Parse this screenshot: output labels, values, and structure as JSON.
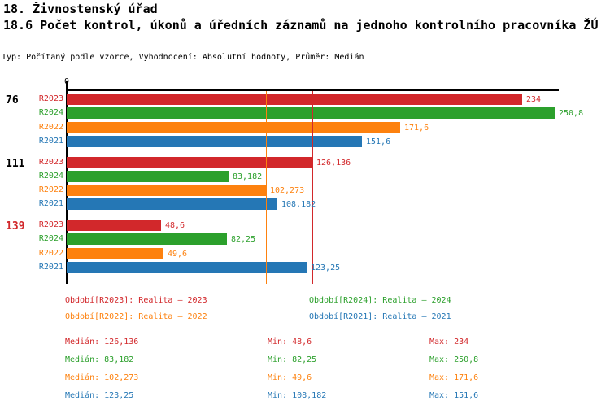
{
  "page": {
    "title": "18. Živnostenský úřad",
    "subtitle": "18.6 Počet kontrol, úkonů a úředních záznamů na jednoho kontrolního pracovníka ŽÚ",
    "meta": "Typ: Počítaný podle vzorce, Vyhodnocení: Absolutní hodnoty, Průměr: Medián"
  },
  "colors": {
    "R2023": "#d2282b",
    "R2024": "#2ca02c",
    "R2022": "#fd810e",
    "R2021": "#2577b5",
    "text": "#000000"
  },
  "chart_data": {
    "type": "bar",
    "orientation": "horizontal",
    "value_axis": {
      "min": 0,
      "tick_label": "0",
      "position": "top"
    },
    "row_order": [
      "R2023",
      "R2024",
      "R2022",
      "R2021"
    ],
    "series": [
      {
        "id": "R2023",
        "name": "Realita – 2023",
        "color": "#d2282b",
        "median": 126.136,
        "min": 48.6,
        "max": 234
      },
      {
        "id": "R2024",
        "name": "Realita – 2024",
        "color": "#2ca02c",
        "median": 83.182,
        "min": 82.25,
        "max": 250.8
      },
      {
        "id": "R2022",
        "name": "Realita – 2022",
        "color": "#fd810e",
        "median": 102.273,
        "min": 49.6,
        "max": 171.6
      },
      {
        "id": "R2021",
        "name": "Realita – 2021",
        "color": "#2577b5",
        "median": 123.25,
        "min": 108.182,
        "max": 151.6
      }
    ],
    "groups": [
      {
        "label": "76",
        "label_color": "#000000",
        "values": {
          "R2023": 234,
          "R2024": 250.8,
          "R2022": 171.6,
          "R2021": 151.6
        },
        "display": {
          "R2023": "234",
          "R2024": "250,8",
          "R2022": "171,6",
          "R2021": "151,6"
        }
      },
      {
        "label": "111",
        "label_color": "#000000",
        "values": {
          "R2023": 126.136,
          "R2024": 83.182,
          "R2022": 102.273,
          "R2021": 108.182
        },
        "display": {
          "R2023": "126,136",
          "R2024": "83,182",
          "R2022": "102,273",
          "R2021": "108,182"
        }
      },
      {
        "label": "139",
        "label_color": "#d2282b",
        "values": {
          "R2023": 48.6,
          "R2024": 82.25,
          "R2022": 49.6,
          "R2021": 123.25
        },
        "display": {
          "R2023": "48,6",
          "R2024": "82,25",
          "R2022": "49,6",
          "R2021": "123,25"
        }
      }
    ],
    "median_lines": {
      "R2023": 126.136,
      "R2024": 83.182,
      "R2022": 102.273,
      "R2021": 123.25
    }
  },
  "legend": {
    "items": [
      {
        "series": "R2023",
        "label": "Období[R2023]: Realita – 2023"
      },
      {
        "series": "R2024",
        "label": "Období[R2024]: Realita – 2024"
      },
      {
        "series": "R2022",
        "label": "Období[R2022]: Realita – 2022"
      },
      {
        "series": "R2021",
        "label": "Období[R2021]: Realita – 2021"
      }
    ]
  },
  "stats": {
    "rows": [
      {
        "series": "R2023",
        "median_label": "Medián: 126,136",
        "min_label": "Min: 48,6",
        "max_label": "Max: 234"
      },
      {
        "series": "R2024",
        "median_label": "Medián: 83,182",
        "min_label": "Min: 82,25",
        "max_label": "Max: 250,8"
      },
      {
        "series": "R2022",
        "median_label": "Medián: 102,273",
        "min_label": "Min: 49,6",
        "max_label": "Max: 171,6"
      },
      {
        "series": "R2021",
        "median_label": "Medián: 123,25",
        "min_label": "Min: 108,182",
        "max_label": "Max: 151,6"
      }
    ]
  }
}
